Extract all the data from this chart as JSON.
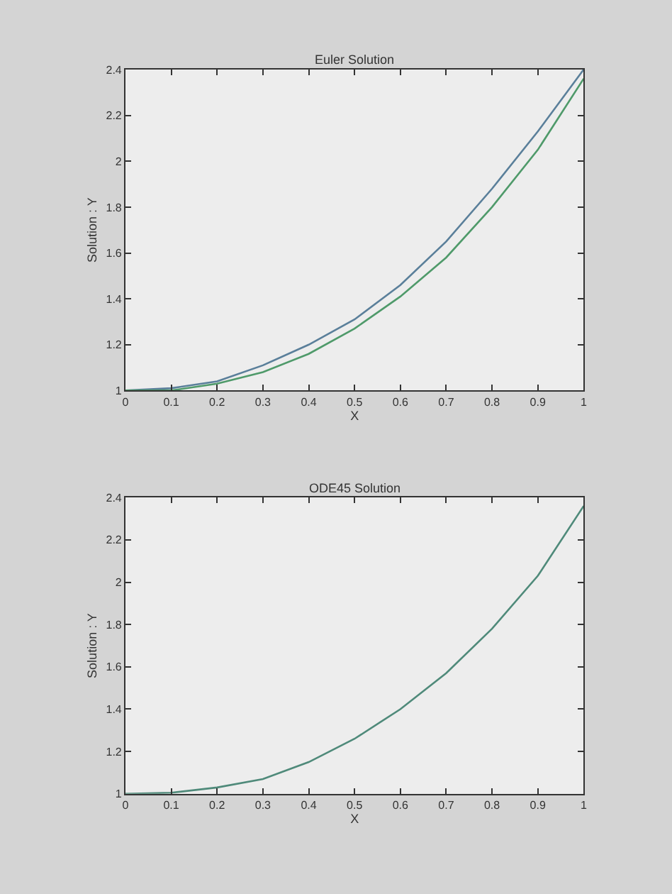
{
  "chart_data": [
    {
      "type": "line",
      "title": "Euler Solution",
      "xlabel": "X",
      "ylabel": "Solution : Y",
      "x": [
        0,
        0.1,
        0.2,
        0.3,
        0.4,
        0.5,
        0.6,
        0.7,
        0.8,
        0.9,
        1
      ],
      "series": [
        {
          "color": "#5a7f9a",
          "values": [
            1,
            1.01,
            1.04,
            1.11,
            1.2,
            1.31,
            1.46,
            1.65,
            1.88,
            2.13,
            2.4
          ]
        },
        {
          "color": "#4f9a6a",
          "values": [
            1,
            1.0,
            1.03,
            1.08,
            1.16,
            1.27,
            1.41,
            1.58,
            1.8,
            2.05,
            2.36
          ]
        }
      ],
      "xlim": [
        0,
        1
      ],
      "xticks": [
        0,
        0.1,
        0.2,
        0.3,
        0.4,
        0.5,
        0.6,
        0.7,
        0.8,
        0.9,
        1
      ],
      "ylim": [
        1,
        2.4
      ],
      "yticks": [
        1,
        1.2,
        1.4,
        1.6,
        1.8,
        2,
        2.2,
        2.4
      ],
      "grid": false
    },
    {
      "type": "line",
      "title": "ODE45 Solution",
      "xlabel": "X",
      "ylabel": "Solution : Y",
      "x": [
        0,
        0.1,
        0.2,
        0.3,
        0.4,
        0.5,
        0.6,
        0.7,
        0.8,
        0.9,
        1
      ],
      "series": [
        {
          "color": "#4f8a7a",
          "values": [
            1,
            1.005,
            1.03,
            1.07,
            1.15,
            1.26,
            1.4,
            1.57,
            1.78,
            2.03,
            2.36
          ]
        }
      ],
      "xlim": [
        0,
        1
      ],
      "xticks": [
        0,
        0.1,
        0.2,
        0.3,
        0.4,
        0.5,
        0.6,
        0.7,
        0.8,
        0.9,
        1
      ],
      "ylim": [
        1,
        2.4
      ],
      "yticks": [
        1,
        1.2,
        1.4,
        1.6,
        1.8,
        2,
        2.2,
        2.4
      ],
      "grid": false
    }
  ]
}
